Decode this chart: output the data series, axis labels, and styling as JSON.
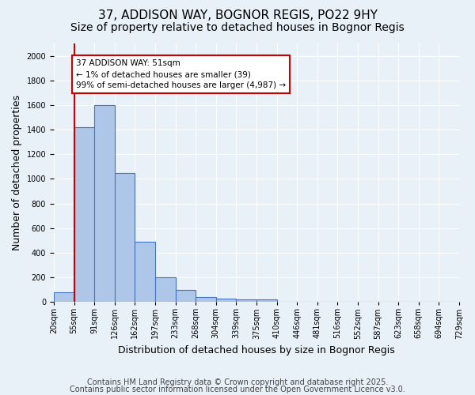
{
  "title1": "37, ADDISON WAY, BOGNOR REGIS, PO22 9HY",
  "title2": "Size of property relative to detached houses in Bognor Regis",
  "xlabel": "Distribution of detached houses by size in Bognor Regis",
  "ylabel": "Number of detached properties",
  "bin_labels": [
    "20sqm",
    "55sqm",
    "91sqm",
    "126sqm",
    "162sqm",
    "197sqm",
    "233sqm",
    "268sqm",
    "304sqm",
    "339sqm",
    "375sqm",
    "410sqm",
    "446sqm",
    "481sqm",
    "516sqm",
    "552sqm",
    "587sqm",
    "623sqm",
    "658sqm",
    "694sqm",
    "729sqm"
  ],
  "bar_values": [
    80,
    1420,
    1600,
    1050,
    490,
    200,
    100,
    40,
    30,
    20,
    20,
    0,
    0,
    0,
    0,
    0,
    0,
    0,
    0,
    0
  ],
  "bar_color": "#aec6e8",
  "bar_edge_color": "#4472c4",
  "ylim": [
    0,
    2100
  ],
  "yticks": [
    0,
    200,
    400,
    600,
    800,
    1000,
    1200,
    1400,
    1600,
    1800,
    2000
  ],
  "red_line_x": 0.5,
  "annotation_text": "37 ADDISON WAY: 51sqm\n← 1% of detached houses are smaller (39)\n99% of semi-detached houses are larger (4,987) →",
  "annotation_box_color": "#ffffff",
  "annotation_box_edge": "#cc0000",
  "red_line_color": "#cc0000",
  "background_color": "#e8f0f8",
  "grid_color": "#ffffff",
  "footer1": "Contains HM Land Registry data © Crown copyright and database right 2025.",
  "footer2": "Contains public sector information licensed under the Open Government Licence v3.0.",
  "title1_fontsize": 11,
  "title2_fontsize": 10,
  "xlabel_fontsize": 9,
  "ylabel_fontsize": 9,
  "tick_fontsize": 7,
  "footer_fontsize": 7
}
